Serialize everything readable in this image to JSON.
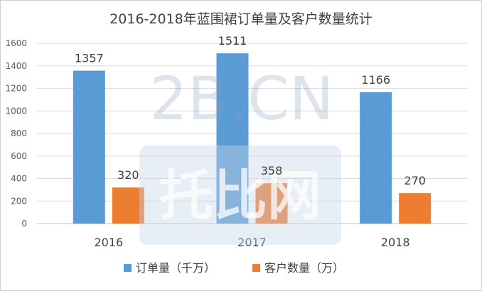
{
  "chart_data": {
    "type": "bar",
    "title": "2016-2018年蓝围裙订单量及客户数量统计",
    "categories": [
      "2016",
      "2017",
      "2018"
    ],
    "series": [
      {
        "name": "订单量（千万）",
        "values": [
          1357,
          1511,
          1166
        ],
        "color": "#5b9bd5"
      },
      {
        "name": "客户数量（万）",
        "values": [
          320,
          358,
          270
        ],
        "color": "#ed7d31"
      }
    ],
    "ylim": [
      0,
      1600
    ],
    "yticks": [
      0,
      200,
      400,
      600,
      800,
      1000,
      1200,
      1400,
      1600
    ],
    "grid": true,
    "legend_position": "bottom",
    "xlabel": "",
    "ylabel": ""
  },
  "watermark": {
    "text": "2B.CN",
    "text_cn": "托比网",
    "color": "#c9d6e6"
  }
}
